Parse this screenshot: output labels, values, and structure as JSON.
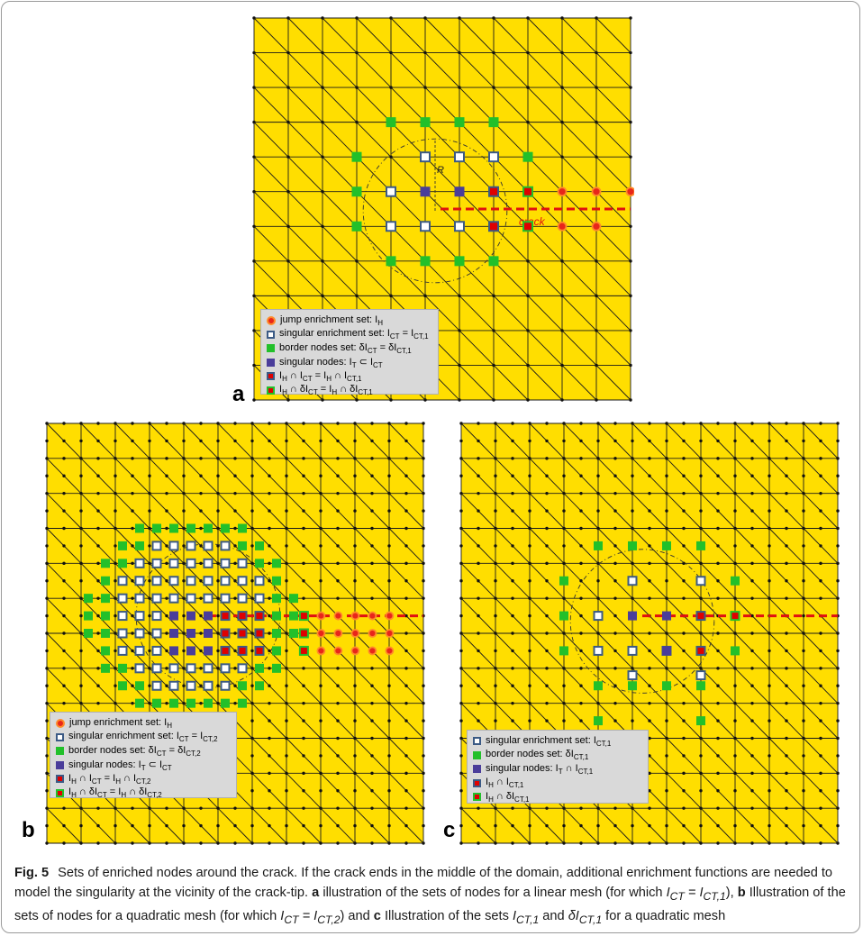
{
  "panels": {
    "a": {
      "label": "a",
      "crack_label": "crack",
      "radius_label": "R",
      "legend": [
        {
          "symbol": "jump",
          "text": "jump enrichment set: I",
          "sub": "H",
          "rest": ""
        },
        {
          "symbol": "sing",
          "text": "singular enrichment set: I",
          "sub": "CT",
          "rest": " = I",
          "sub2": "CT,1"
        },
        {
          "symbol": "border",
          "text": "border nodes set: δI",
          "sub": "CT",
          "rest": " = δI",
          "sub2": "CT,1"
        },
        {
          "symbol": "snode",
          "text": " singular nodes: I",
          "sub": "T",
          "rest": " ⊂ I",
          "sub2": "CT"
        },
        {
          "symbol": "ih-ict",
          "text": "I",
          "sub": "H",
          "rest": " ∩ I",
          "sub2": "CT",
          "rest2": " = I",
          "sub3": "H",
          "rest3": " ∩ I",
          "sub4": "CT,1"
        },
        {
          "symbol": "ih-dict",
          "text": "I",
          "sub": "H",
          "rest": " ∩ δI",
          "sub2": "CT",
          "rest2": " = I",
          "sub3": "H",
          "rest3": " ∩ δI",
          "sub4": "CT,1"
        }
      ]
    },
    "b": {
      "label": "b",
      "legend": [
        {
          "symbol": "jump",
          "text": "jump enrichment set: I",
          "sub": "H",
          "rest": ""
        },
        {
          "symbol": "sing",
          "text": "singular enrichment set: I",
          "sub": "CT",
          "rest": " = I",
          "sub2": "CT,2"
        },
        {
          "symbol": "border",
          "text": "border nodes set: δI",
          "sub": "CT",
          "rest": " = δI",
          "sub2": "CT,2"
        },
        {
          "symbol": "snode",
          "text": " singular nodes: I",
          "sub": "T",
          "rest": " ⊂ I",
          "sub2": "CT"
        },
        {
          "symbol": "ih-ict",
          "text": "I",
          "sub": "H",
          "rest": " ∩ I",
          "sub2": "CT",
          "rest2": " = I",
          "sub3": "H",
          "rest3": " ∩ I",
          "sub4": "CT,2"
        },
        {
          "symbol": "ih-dict",
          "text": "I",
          "sub": "H",
          "rest": " ∩ δI",
          "sub2": "CT",
          "rest2": " = I",
          "sub3": "H",
          "rest3": " ∩ δI",
          "sub4": "CT,2"
        }
      ]
    },
    "c": {
      "label": "c",
      "legend": [
        {
          "symbol": "sing",
          "text": "singular enrichment set: I",
          "sub": "CT,1",
          "rest": ""
        },
        {
          "symbol": "border",
          "text": "border nodes set: δI",
          "sub": "CT,1",
          "rest": ""
        },
        {
          "symbol": "snode",
          "text": " singular nodes: I",
          "sub": "T",
          "rest": " ∩ I",
          "sub2": "CT,1"
        },
        {
          "symbol": "ih-ict",
          "text": "I",
          "sub": "H",
          "rest": " ∩ I",
          "sub2": "CT,1"
        },
        {
          "symbol": "ih-dict",
          "text": "I",
          "sub": "H",
          "rest": " ∩ δI",
          "sub2": "CT,1"
        }
      ]
    }
  },
  "caption": {
    "fig_label": "Fig. 5",
    "t1": "Sets of enriched nodes around the crack. If the crack ends in the middle of the domain, additional enrichment functions are needed to model the singularity at the vicinity of the crack-tip. ",
    "a": "a",
    "t2": " illustration of the sets of nodes for a linear mesh (for which ",
    "m1": "I",
    "m1s": "CT",
    "m1e": " = I",
    "m1es": "CT,1",
    "t3": "), ",
    "b": "b",
    "t4": " Illustration of the sets of nodes for a quadratic mesh (for which ",
    "m2": "I",
    "m2s": "CT",
    "m2e": " = I",
    "m2es": "CT,2",
    "t5": ") and ",
    "c": "c",
    "t6": " Illustration of the sets ",
    "m3": "I",
    "m3s": "CT,1",
    "t7": " and ",
    "m4": "δI",
    "m4s": "CT,1",
    "t8": " for a quadratic mesh"
  },
  "colors": {
    "mesh_bg": "#ffde00",
    "jump": "#e8261a",
    "border": "#22c02a",
    "singular": "#4a3d9a",
    "crack": "#e01010"
  }
}
